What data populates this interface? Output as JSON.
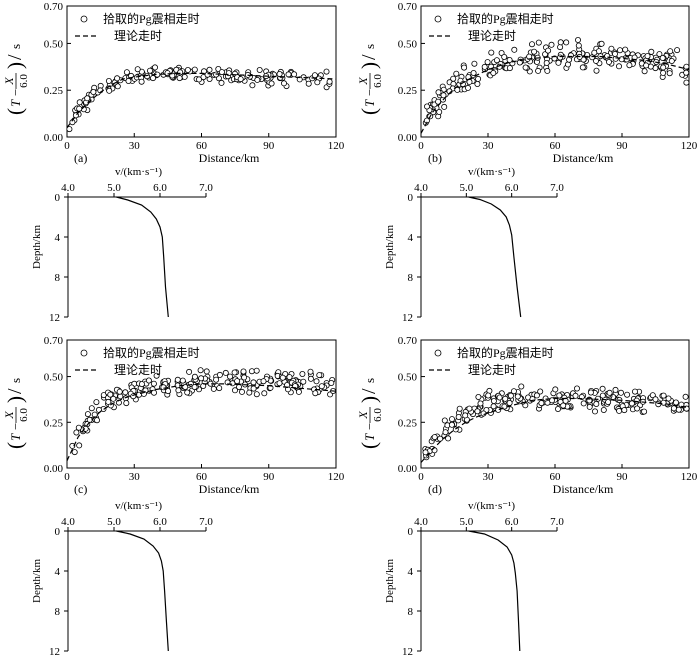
{
  "chart_data": [
    {
      "type": "scatter",
      "panel_label": "(a)",
      "xlabel": "Distance/km",
      "ylabel": "(T − X/6.0)/s",
      "ylabel_parts": {
        "t": "T",
        "minus": "−",
        "x": "X",
        "denominator": "6.0",
        "unit": "s"
      },
      "xlim": [
        0,
        120
      ],
      "ylim": [
        0,
        0.7
      ],
      "x_ticks": [
        "0",
        "30",
        "60",
        "90",
        "120"
      ],
      "y_ticks": [
        "0.00",
        "0.25",
        "0.50",
        "0.70"
      ],
      "legend": {
        "scatter": "拾取的Pg震相走时",
        "line": "理论走时"
      },
      "fit": {
        "x": [
          0,
          5,
          10,
          15,
          20,
          25,
          30,
          40,
          50,
          60,
          70,
          80,
          90,
          100,
          110,
          120
        ],
        "y": [
          0.05,
          0.13,
          0.19,
          0.24,
          0.28,
          0.31,
          0.32,
          0.335,
          0.34,
          0.34,
          0.335,
          0.33,
          0.325,
          0.32,
          0.315,
          0.31
        ]
      },
      "scatter": {
        "base": [
          [
            0,
            0.05
          ],
          [
            8,
            0.18
          ],
          [
            15,
            0.25
          ],
          [
            25,
            0.31
          ],
          [
            40,
            0.34
          ],
          [
            70,
            0.33
          ],
          [
            100,
            0.31
          ],
          [
            120,
            0.3
          ]
        ],
        "x_range": [
          1,
          118
        ],
        "spread": 0.05,
        "count": 170,
        "seed": 11
      }
    },
    {
      "type": "scatter",
      "panel_label": "(b)",
      "xlabel": "Distance/km",
      "ylabel": "(T − X/6.0)/s",
      "ylabel_parts": {
        "t": "T",
        "minus": "−",
        "x": "X",
        "denominator": "6.0",
        "unit": "s"
      },
      "xlim": [
        0,
        120
      ],
      "ylim": [
        0,
        0.7
      ],
      "x_ticks": [
        "0",
        "30",
        "60",
        "90",
        "120"
      ],
      "y_ticks": [
        "0.00",
        "0.25",
        "0.50",
        "0.70"
      ],
      "legend": {
        "scatter": "拾取的Pg震相走时",
        "line": "理论走时"
      },
      "fit": {
        "x": [
          0,
          5,
          10,
          15,
          20,
          25,
          30,
          40,
          50,
          60,
          70,
          80,
          90,
          100,
          110,
          120
        ],
        "y": [
          0.02,
          0.13,
          0.2,
          0.26,
          0.3,
          0.33,
          0.36,
          0.4,
          0.42,
          0.43,
          0.43,
          0.43,
          0.42,
          0.41,
          0.39,
          0.36
        ]
      },
      "scatter": {
        "base": [
          [
            0,
            0.08
          ],
          [
            10,
            0.22
          ],
          [
            20,
            0.32
          ],
          [
            30,
            0.38
          ],
          [
            50,
            0.42
          ],
          [
            70,
            0.44
          ],
          [
            90,
            0.43
          ],
          [
            110,
            0.39
          ],
          [
            120,
            0.37
          ]
        ],
        "x_range": [
          1,
          119
        ],
        "spread": 0.09,
        "count": 240,
        "seed": 23
      }
    },
    {
      "type": "scatter",
      "panel_label": "(c)",
      "xlabel": "Distance/km",
      "ylabel": "(T − X/6.0)/s",
      "ylabel_parts": {
        "t": "T",
        "minus": "−",
        "x": "X",
        "denominator": "6.0",
        "unit": "s"
      },
      "xlim": [
        0,
        120
      ],
      "ylim": [
        0,
        0.7
      ],
      "x_ticks": [
        "0",
        "30",
        "60",
        "90",
        "120"
      ],
      "y_ticks": [
        "0.00",
        "0.25",
        "0.50",
        "0.70"
      ],
      "legend": {
        "scatter": "拾取的Pg震相走时",
        "line": "理论走时"
      },
      "fit": {
        "x": [
          0,
          5,
          10,
          15,
          20,
          25,
          30,
          40,
          50,
          60,
          70,
          80,
          90,
          100,
          110,
          120
        ],
        "y": [
          0.04,
          0.17,
          0.25,
          0.31,
          0.35,
          0.38,
          0.4,
          0.43,
          0.45,
          0.46,
          0.46,
          0.455,
          0.45,
          0.44,
          0.43,
          0.42
        ]
      },
      "scatter": {
        "base": [
          [
            0,
            0.06
          ],
          [
            10,
            0.27
          ],
          [
            20,
            0.37
          ],
          [
            30,
            0.42
          ],
          [
            50,
            0.47
          ],
          [
            70,
            0.48
          ],
          [
            90,
            0.47
          ],
          [
            110,
            0.46
          ],
          [
            120,
            0.45
          ]
        ],
        "x_range": [
          1,
          119
        ],
        "spread": 0.075,
        "count": 230,
        "seed": 37
      }
    },
    {
      "type": "scatter",
      "panel_label": "(d)",
      "xlabel": "Distance/km",
      "ylabel": "(T − X/6.0)/s",
      "ylabel_parts": {
        "t": "T",
        "minus": "−",
        "x": "X",
        "denominator": "6.0",
        "unit": "s"
      },
      "xlim": [
        0,
        120
      ],
      "ylim": [
        0,
        0.7
      ],
      "x_ticks": [
        "0",
        "30",
        "60",
        "90",
        "120"
      ],
      "y_ticks": [
        "0.00",
        "0.25",
        "0.50",
        "0.70"
      ],
      "legend": {
        "scatter": "拾取的Pg震相走时",
        "line": "理论走时"
      },
      "fit": {
        "x": [
          0,
          5,
          10,
          15,
          20,
          25,
          30,
          40,
          50,
          60,
          70,
          80,
          90,
          100,
          110,
          120
        ],
        "y": [
          0.03,
          0.1,
          0.16,
          0.21,
          0.25,
          0.28,
          0.3,
          0.34,
          0.37,
          0.38,
          0.38,
          0.375,
          0.37,
          0.36,
          0.35,
          0.33
        ]
      },
      "scatter": {
        "base": [
          [
            0,
            0.05
          ],
          [
            10,
            0.2
          ],
          [
            20,
            0.3
          ],
          [
            30,
            0.36
          ],
          [
            50,
            0.39
          ],
          [
            70,
            0.38
          ],
          [
            90,
            0.37
          ],
          [
            110,
            0.35
          ],
          [
            120,
            0.33
          ]
        ],
        "x_range": [
          1,
          119
        ],
        "spread": 0.075,
        "count": 230,
        "seed": 53
      }
    },
    {
      "type": "line",
      "panel": "velocity-a",
      "xlabel": "v/(km·s⁻¹)",
      "ylabel": "Depth/km",
      "xlim": [
        4.0,
        7.0
      ],
      "ylim": [
        0,
        12
      ],
      "x_ticks": [
        "4.0",
        "5.0",
        "6.0",
        "7.0"
      ],
      "y_ticks": [
        "0",
        "4",
        "8",
        "12"
      ],
      "profile": {
        "v": [
          5.05,
          5.3,
          5.6,
          5.8,
          5.92,
          6.0,
          6.05,
          6.08,
          6.12,
          6.18
        ],
        "depth": [
          0,
          0.3,
          0.8,
          1.5,
          2.2,
          3.0,
          4.0,
          6.0,
          9.0,
          12.0
        ]
      }
    },
    {
      "type": "line",
      "panel": "velocity-b",
      "xlabel": "v/(km·s⁻¹)",
      "ylabel": "Depth/km",
      "xlim": [
        4.0,
        7.0
      ],
      "ylim": [
        0,
        12
      ],
      "x_ticks": [
        "4.0",
        "5.0",
        "6.0",
        "7.0"
      ],
      "y_ticks": [
        "0",
        "4",
        "8",
        "12"
      ],
      "profile": {
        "v": [
          5.05,
          5.3,
          5.55,
          5.75,
          5.88,
          5.95,
          6.0,
          6.05,
          6.12,
          6.2
        ],
        "depth": [
          0,
          0.25,
          0.7,
          1.3,
          2.0,
          2.8,
          3.8,
          6.0,
          9.0,
          12.0
        ]
      }
    },
    {
      "type": "line",
      "panel": "velocity-c",
      "xlabel": "v/(km·s⁻¹)",
      "ylabel": "Depth/km",
      "xlim": [
        4.0,
        7.0
      ],
      "ylim": [
        0,
        12
      ],
      "x_ticks": [
        "4.0",
        "5.0",
        "6.0",
        "7.0"
      ],
      "y_ticks": [
        "0",
        "4",
        "8",
        "12"
      ],
      "profile": {
        "v": [
          5.05,
          5.35,
          5.65,
          5.85,
          5.97,
          6.03,
          6.07,
          6.1,
          6.14,
          6.18
        ],
        "depth": [
          0,
          0.3,
          0.8,
          1.5,
          2.2,
          3.0,
          4.0,
          6.0,
          9.0,
          12.0
        ]
      }
    },
    {
      "type": "line",
      "panel": "velocity-d",
      "xlabel": "v/(km·s⁻¹)",
      "ylabel": "Depth/km",
      "xlim": [
        4.0,
        7.0
      ],
      "ylim": [
        0,
        12
      ],
      "x_ticks": [
        "4.0",
        "5.0",
        "6.0",
        "7.0"
      ],
      "y_ticks": [
        "0",
        "4",
        "8",
        "12"
      ],
      "profile": {
        "v": [
          5.05,
          5.4,
          5.7,
          5.9,
          6.0,
          6.05,
          6.08,
          6.12,
          6.15,
          6.18
        ],
        "depth": [
          0,
          0.3,
          0.9,
          1.6,
          2.4,
          3.2,
          4.2,
          6.0,
          9.0,
          12.0
        ]
      }
    }
  ]
}
